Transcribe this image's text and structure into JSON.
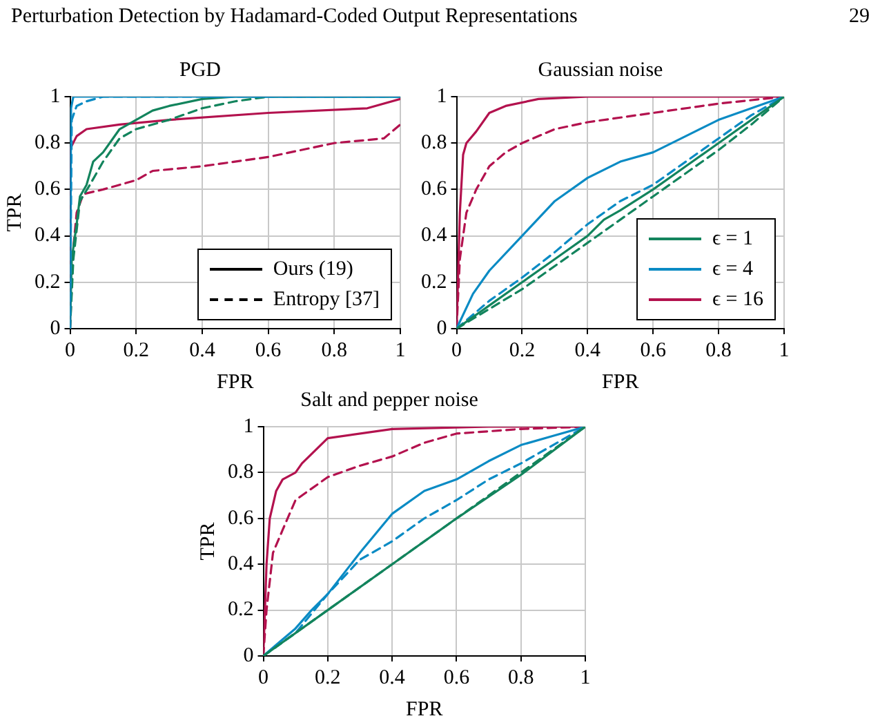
{
  "chart_data": [
    {
      "type": "line",
      "title": "PGD",
      "xlabel": "FPR",
      "ylabel": "TPR",
      "annotations": [
        "Perturbation Detection by Hadamard-Coded Output Representations",
        "29"
      ],
      "xlim": [
        0,
        1
      ],
      "ylim": [
        0,
        1
      ],
      "xticks": [
        0,
        0.2,
        0.4,
        0.6,
        0.8,
        1
      ],
      "yticks": [
        0,
        0.2,
        0.4,
        0.6,
        0.8,
        1
      ],
      "grid": true,
      "legend": "bottom right",
      "marker": "none",
      "series": [
        {
          "color": "#0b8bc4",
          "line_style": "solid",
          "x": [
            0,
            0.003,
            0.01,
            1
          ],
          "values": [
            0,
            0.95,
            1,
            1
          ]
        },
        {
          "color": "#0b8bc4",
          "line_style": "dashed",
          "x": [
            0,
            0.005,
            0.02,
            0.05,
            0.1,
            1
          ],
          "values": [
            0,
            0.9,
            0.96,
            0.98,
            1,
            1
          ]
        },
        {
          "color": "#13845d",
          "line_style": "solid",
          "x": [
            0,
            0.005,
            0.02,
            0.03,
            0.05,
            0.07,
            0.1,
            0.13,
            0.15,
            0.2,
            0.25,
            0.3,
            0.4,
            0.5,
            1
          ],
          "values": [
            0,
            0.3,
            0.45,
            0.57,
            0.62,
            0.72,
            0.76,
            0.82,
            0.86,
            0.9,
            0.94,
            0.96,
            0.99,
            1,
            1
          ]
        },
        {
          "color": "#13845d",
          "line_style": "dashed",
          "x": [
            0,
            0.01,
            0.03,
            0.06,
            0.1,
            0.15,
            0.2,
            0.3,
            0.4,
            0.5,
            0.6,
            1
          ],
          "values": [
            0,
            0.3,
            0.55,
            0.62,
            0.72,
            0.82,
            0.86,
            0.9,
            0.95,
            0.98,
            1,
            1
          ]
        },
        {
          "color": "#b3124e",
          "line_style": "solid",
          "x": [
            0,
            0.002,
            0.02,
            0.05,
            0.15,
            0.3,
            0.6,
            0.9,
            1
          ],
          "values": [
            0,
            0.78,
            0.83,
            0.86,
            0.88,
            0.9,
            0.93,
            0.95,
            0.99
          ]
        },
        {
          "color": "#b3124e",
          "line_style": "dashed",
          "x": [
            0,
            0.01,
            0.02,
            0.04,
            0.1,
            0.2,
            0.25,
            0.4,
            0.6,
            0.8,
            0.95,
            1
          ],
          "values": [
            0,
            0.35,
            0.5,
            0.58,
            0.6,
            0.64,
            0.68,
            0.7,
            0.74,
            0.8,
            0.82,
            0.88
          ]
        },
        {
          "name": "Ours (19)",
          "color": "#000000",
          "line_style": "solid"
        },
        {
          "name": "Entropy [37]",
          "color": "#000000",
          "line_style": "dashed"
        }
      ]
    },
    {
      "type": "line",
      "title": "Gaussian noise",
      "xlabel": "FPR",
      "xlim": [
        0,
        1
      ],
      "ylim": [
        0,
        1
      ],
      "xticks": [
        0,
        0.2,
        0.4,
        0.6,
        0.8,
        1
      ],
      "yticks": [
        0,
        0.2,
        0.4,
        0.6,
        0.8,
        1
      ],
      "grid": true,
      "legend": "bottom right",
      "marker": "none",
      "series": [
        {
          "name": "ϵ = 1",
          "color": "#13845d",
          "line_style": "solid",
          "x": [
            0,
            0.1,
            0.2,
            0.3,
            0.4,
            0.45,
            0.5,
            0.6,
            0.7,
            0.8,
            0.9,
            1
          ],
          "values": [
            0,
            0.1,
            0.2,
            0.3,
            0.4,
            0.47,
            0.51,
            0.6,
            0.7,
            0.8,
            0.9,
            1
          ]
        },
        {
          "color": "#13845d",
          "line_style": "dashed",
          "x": [
            0,
            0.2,
            0.4,
            0.6,
            0.8,
            0.9,
            1
          ],
          "values": [
            0,
            0.17,
            0.37,
            0.57,
            0.77,
            0.88,
            1
          ]
        },
        {
          "name": "ϵ = 4",
          "color": "#0b8bc4",
          "line_style": "solid",
          "x": [
            0,
            0.05,
            0.1,
            0.2,
            0.3,
            0.4,
            0.5,
            0.6,
            0.7,
            0.8,
            0.9,
            1
          ],
          "values": [
            0,
            0.15,
            0.25,
            0.4,
            0.55,
            0.65,
            0.72,
            0.76,
            0.83,
            0.9,
            0.95,
            1
          ]
        },
        {
          "color": "#0b8bc4",
          "line_style": "dashed",
          "x": [
            0,
            0.1,
            0.2,
            0.3,
            0.4,
            0.5,
            0.6,
            0.7,
            0.8,
            0.9,
            1
          ],
          "values": [
            0,
            0.12,
            0.22,
            0.33,
            0.45,
            0.55,
            0.62,
            0.72,
            0.82,
            0.92,
            1
          ]
        },
        {
          "name": "ϵ = 16",
          "color": "#b3124e",
          "line_style": "solid",
          "x": [
            0,
            0.01,
            0.02,
            0.03,
            0.06,
            0.1,
            0.15,
            0.25,
            0.4,
            1
          ],
          "values": [
            0,
            0.5,
            0.75,
            0.8,
            0.85,
            0.93,
            0.96,
            0.99,
            1,
            1
          ]
        },
        {
          "color": "#b3124e",
          "line_style": "dashed",
          "x": [
            0,
            0.01,
            0.03,
            0.06,
            0.1,
            0.15,
            0.2,
            0.3,
            0.4,
            0.6,
            0.8,
            1
          ],
          "values": [
            0,
            0.3,
            0.5,
            0.6,
            0.7,
            0.76,
            0.8,
            0.86,
            0.89,
            0.93,
            0.97,
            1
          ]
        }
      ]
    },
    {
      "type": "line",
      "title": "Salt and pepper noise",
      "xlabel": "FPR",
      "ylabel": "TPR",
      "xlim": [
        0,
        1
      ],
      "ylim": [
        0,
        1
      ],
      "xticks": [
        0,
        0.2,
        0.4,
        0.6,
        0.8,
        1
      ],
      "yticks": [
        0,
        0.2,
        0.4,
        0.6,
        0.8,
        1
      ],
      "grid": true,
      "marker": "none",
      "series": [
        {
          "color": "#13845d",
          "line_style": "solid",
          "x": [
            0,
            0.2,
            0.4,
            0.6,
            0.8,
            1
          ],
          "values": [
            0,
            0.2,
            0.4,
            0.6,
            0.79,
            1
          ]
        },
        {
          "color": "#13845d",
          "line_style": "dashed",
          "x": [
            0,
            0.2,
            0.4,
            0.6,
            0.8,
            1
          ],
          "values": [
            0,
            0.2,
            0.4,
            0.6,
            0.8,
            1
          ]
        },
        {
          "color": "#0b8bc4",
          "line_style": "solid",
          "x": [
            0,
            0.05,
            0.1,
            0.15,
            0.2,
            0.3,
            0.4,
            0.5,
            0.6,
            0.7,
            0.8,
            0.9,
            1
          ],
          "values": [
            0,
            0.06,
            0.12,
            0.2,
            0.27,
            0.45,
            0.62,
            0.72,
            0.77,
            0.85,
            0.92,
            0.96,
            1
          ]
        },
        {
          "color": "#0b8bc4",
          "line_style": "dashed",
          "x": [
            0,
            0.1,
            0.2,
            0.3,
            0.4,
            0.5,
            0.6,
            0.7,
            0.8,
            0.9,
            1
          ],
          "values": [
            0,
            0.1,
            0.27,
            0.42,
            0.5,
            0.6,
            0.68,
            0.77,
            0.84,
            0.92,
            1
          ]
        },
        {
          "color": "#b3124e",
          "line_style": "solid",
          "x": [
            0,
            0.01,
            0.02,
            0.04,
            0.06,
            0.1,
            0.12,
            0.2,
            0.4,
            0.7,
            1
          ],
          "values": [
            0,
            0.4,
            0.6,
            0.72,
            0.77,
            0.8,
            0.84,
            0.95,
            0.99,
            1,
            1
          ]
        },
        {
          "color": "#b3124e",
          "line_style": "dashed",
          "x": [
            0,
            0.01,
            0.03,
            0.06,
            0.1,
            0.15,
            0.2,
            0.3,
            0.4,
            0.5,
            0.6,
            0.8,
            1
          ],
          "values": [
            0,
            0.2,
            0.45,
            0.55,
            0.68,
            0.73,
            0.78,
            0.83,
            0.87,
            0.93,
            0.97,
            0.99,
            1
          ]
        }
      ]
    }
  ]
}
